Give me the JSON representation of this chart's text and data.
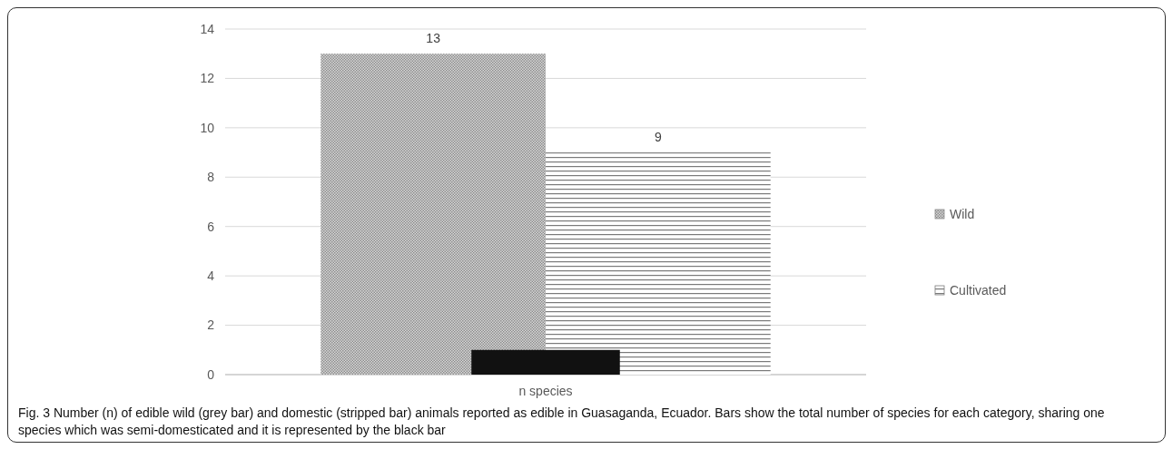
{
  "chart_data": {
    "type": "bar",
    "categories": [
      "n species"
    ],
    "series": [
      {
        "name": "Wild",
        "color": "#8c8c8c",
        "values": [
          13
        ],
        "value_labels": [
          "13"
        ]
      },
      {
        "name": "Cultivated",
        "color": "#7a7a7a",
        "values": [
          9
        ],
        "value_labels": [
          "9"
        ]
      },
      {
        "color": "#111111",
        "values": [
          1
        ],
        "value_labels": [
          null
        ]
      }
    ],
    "ylim": [
      0,
      14
    ],
    "yticks": [
      0,
      2,
      4,
      6,
      8,
      10,
      12,
      14
    ],
    "grid": "y",
    "legend": "right",
    "annotations": [
      "Fig. 3 Number (n) of edible wild (grey bar) and domestic (stripped bar) animals reported as edible in Guasaganda, Ecuador. Bars show the total number of species for each category, sharing one species which was semi-domesticated and it is represented by the black bar"
    ]
  }
}
